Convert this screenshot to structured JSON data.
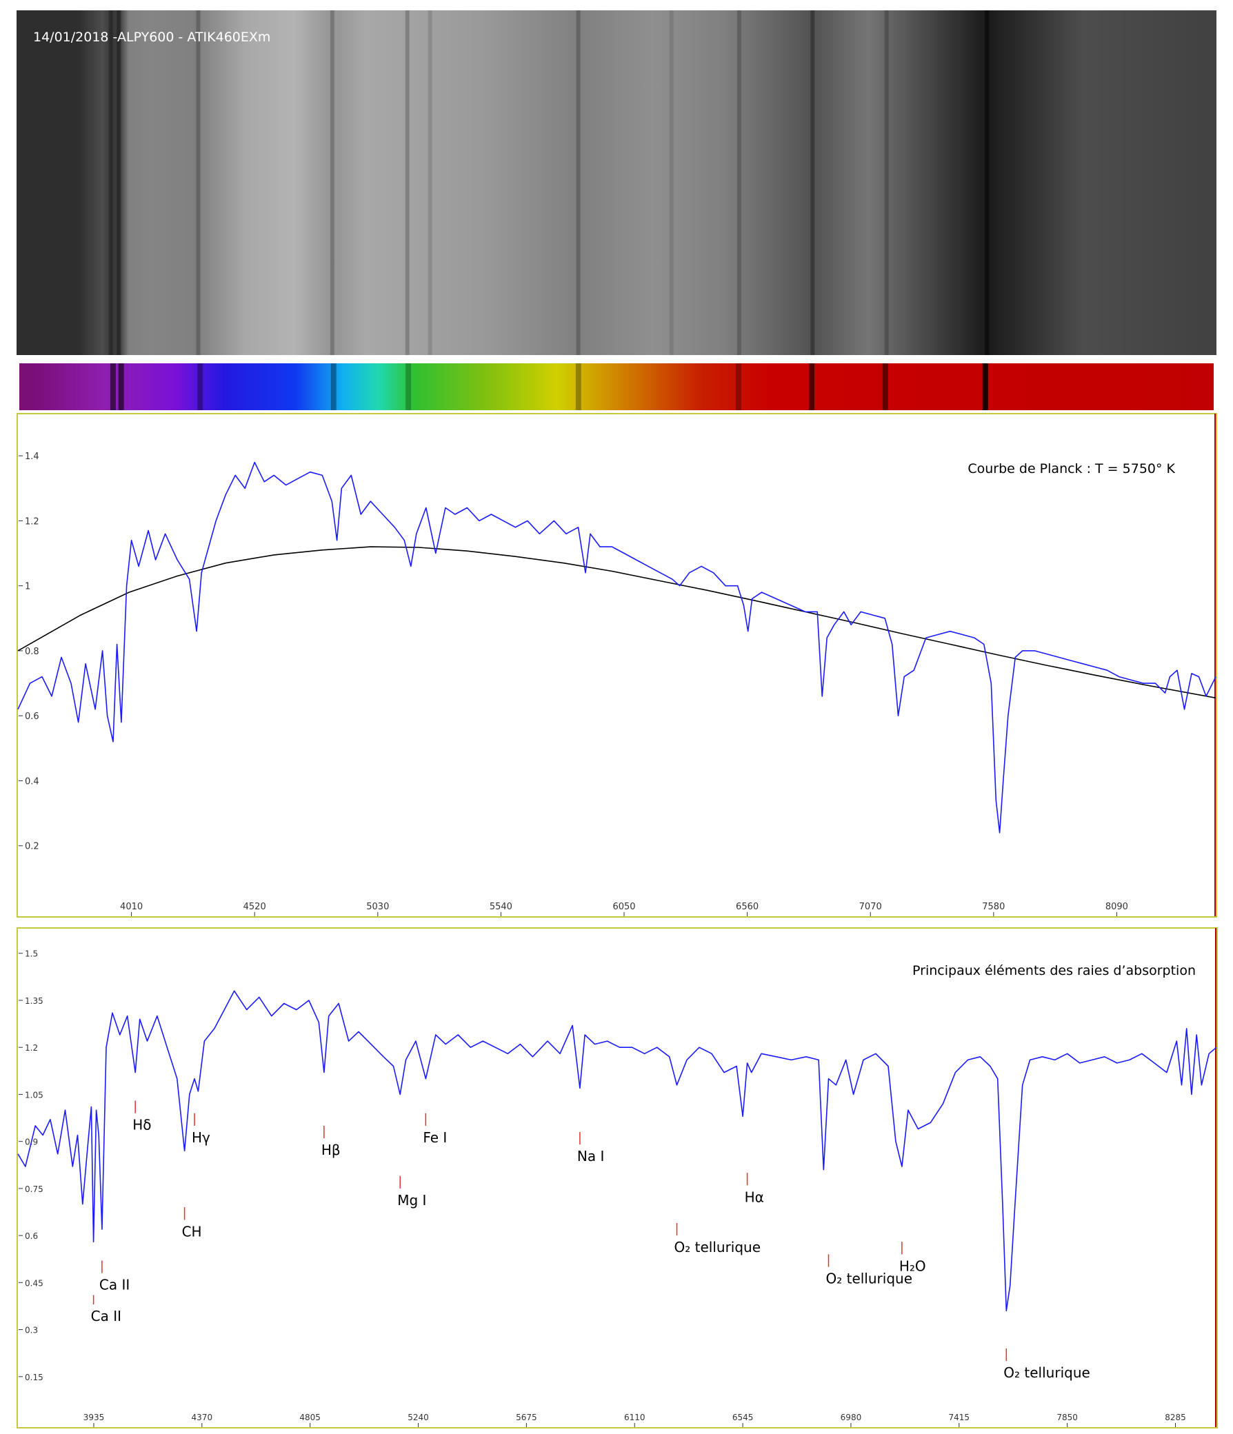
{
  "image_caption": "14/01/2018 -ALPY600 - ATIK460EXm",
  "colors": {
    "frame": "#c8c83c",
    "spectrum": "#1a1aff",
    "planck": "#000000",
    "marker": "#e03030",
    "end_marker": "#b00000"
  },
  "image_band_peaks": [
    {
      "x": 3800,
      "v": 0.18
    },
    {
      "x": 3900,
      "v": 0.3
    },
    {
      "x": 3940,
      "v": 0.22
    },
    {
      "x": 3970,
      "v": 0.24
    },
    {
      "x": 4010,
      "v": 0.5
    },
    {
      "x": 4100,
      "v": 0.52
    },
    {
      "x": 4300,
      "v": 0.5
    },
    {
      "x": 4500,
      "v": 0.66
    },
    {
      "x": 4700,
      "v": 0.7
    },
    {
      "x": 4860,
      "v": 0.58
    },
    {
      "x": 5000,
      "v": 0.66
    },
    {
      "x": 5500,
      "v": 0.6
    },
    {
      "x": 5890,
      "v": 0.5
    },
    {
      "x": 6200,
      "v": 0.56
    },
    {
      "x": 6500,
      "v": 0.5
    },
    {
      "x": 6870,
      "v": 0.32
    },
    {
      "x": 7100,
      "v": 0.46
    },
    {
      "x": 7600,
      "v": 0.1
    },
    {
      "x": 8000,
      "v": 0.3
    },
    {
      "x": 8500,
      "v": 0.26
    }
  ],
  "image_dark_lines": [
    {
      "x": 3934,
      "s": 0.25
    },
    {
      "x": 3968,
      "s": 0.3
    },
    {
      "x": 4300,
      "s": 0.22
    },
    {
      "x": 4861,
      "s": 0.2
    },
    {
      "x": 5175,
      "s": 0.2
    },
    {
      "x": 5270,
      "s": 0.12
    },
    {
      "x": 5890,
      "s": 0.22
    },
    {
      "x": 6280,
      "s": 0.1
    },
    {
      "x": 6563,
      "s": 0.2
    },
    {
      "x": 6870,
      "s": 0.3
    },
    {
      "x": 7180,
      "s": 0.2
    },
    {
      "x": 7600,
      "s": 0.45
    }
  ],
  "strip_color_stops": [
    {
      "x": 3600,
      "c": "#7a0f78"
    },
    {
      "x": 3900,
      "c": "#8f1fb0"
    },
    {
      "x": 4200,
      "c": "#7a10d8"
    },
    {
      "x": 4400,
      "c": "#2418e0"
    },
    {
      "x": 4700,
      "c": "#1038f0"
    },
    {
      "x": 4900,
      "c": "#10b0f0"
    },
    {
      "x": 5050,
      "c": "#20d8b0"
    },
    {
      "x": 5200,
      "c": "#30c030"
    },
    {
      "x": 5500,
      "c": "#80c010"
    },
    {
      "x": 5800,
      "c": "#d0d000"
    },
    {
      "x": 6100,
      "c": "#d07800"
    },
    {
      "x": 6400,
      "c": "#c82000"
    },
    {
      "x": 6700,
      "c": "#c80000"
    },
    {
      "x": 8600,
      "c": "#c00000"
    }
  ],
  "strip_dark_lines": [
    {
      "x": 3934,
      "s": 0.55
    },
    {
      "x": 3968,
      "s": 0.6
    },
    {
      "x": 4300,
      "s": 0.35
    },
    {
      "x": 4861,
      "s": 0.35
    },
    {
      "x": 5175,
      "s": 0.25
    },
    {
      "x": 5890,
      "s": 0.3
    },
    {
      "x": 6563,
      "s": 0.3
    },
    {
      "x": 6870,
      "s": 0.6
    },
    {
      "x": 7180,
      "s": 0.5
    },
    {
      "x": 7600,
      "s": 0.85
    }
  ],
  "chart_data": [
    {
      "type": "line",
      "title": "Courbe de Planck : T = 5750° K",
      "xlim": [
        3540,
        8500
      ],
      "ylim": [
        0.0,
        1.5
      ],
      "x_ticks": [
        4010,
        4520,
        5030,
        5540,
        6050,
        6560,
        7070,
        7580,
        8090
      ],
      "y_ticks": [
        0.2,
        0.4,
        0.6,
        0.8,
        1.0,
        1.2,
        1.4
      ],
      "y_tick_labels": [
        "0.2",
        "0.4",
        "0.6",
        "0.8",
        "1",
        "1.2",
        "1.4"
      ],
      "planck": {
        "x": [
          3540,
          3800,
          4000,
          4200,
          4400,
          4600,
          4800,
          5000,
          5200,
          5400,
          5600,
          5800,
          6000,
          6200,
          6400,
          6600,
          6800,
          7000,
          7200,
          7400,
          7600,
          7800,
          8000,
          8200,
          8500
        ],
        "values": [
          0.8,
          0.91,
          0.98,
          1.03,
          1.07,
          1.095,
          1.11,
          1.12,
          1.118,
          1.107,
          1.09,
          1.07,
          1.045,
          1.015,
          0.985,
          0.953,
          0.92,
          0.887,
          0.853,
          0.82,
          0.787,
          0.755,
          0.725,
          0.696,
          0.655
        ]
      },
      "series": [
        {
          "x": [
            3540,
            3590,
            3640,
            3680,
            3720,
            3760,
            3790,
            3820,
            3860,
            3890,
            3910,
            3934,
            3950,
            3968,
            3990,
            4010,
            4040,
            4080,
            4110,
            4150,
            4200,
            4250,
            4280,
            4300,
            4330,
            4360,
            4400,
            4440,
            4480,
            4520,
            4560,
            4600,
            4650,
            4700,
            4750,
            4800,
            4840,
            4861,
            4880,
            4920,
            4960,
            5000,
            5050,
            5100,
            5140,
            5167,
            5190,
            5230,
            5270,
            5310,
            5350,
            5400,
            5450,
            5500,
            5550,
            5600,
            5650,
            5700,
            5760,
            5810,
            5860,
            5890,
            5910,
            5950,
            6000,
            6050,
            6100,
            6150,
            6200,
            6250,
            6280,
            6320,
            6370,
            6420,
            6470,
            6520,
            6545,
            6563,
            6580,
            6620,
            6680,
            6740,
            6800,
            6850,
            6870,
            6890,
            6920,
            6960,
            6990,
            7030,
            7080,
            7130,
            7160,
            7185,
            7210,
            7250,
            7300,
            7350,
            7400,
            7450,
            7500,
            7540,
            7570,
            7590,
            7605,
            7620,
            7640,
            7670,
            7700,
            7750,
            7800,
            7850,
            7900,
            7950,
            8000,
            8050,
            8100,
            8150,
            8200,
            8250,
            8290,
            8310,
            8340,
            8370,
            8400,
            8430,
            8460,
            8500
          ],
          "values": [
            0.62,
            0.7,
            0.72,
            0.66,
            0.78,
            0.7,
            0.58,
            0.76,
            0.62,
            0.8,
            0.6,
            0.52,
            0.82,
            0.58,
            1.0,
            1.14,
            1.06,
            1.17,
            1.08,
            1.16,
            1.08,
            1.02,
            0.86,
            1.04,
            1.12,
            1.2,
            1.28,
            1.34,
            1.3,
            1.38,
            1.32,
            1.34,
            1.31,
            1.33,
            1.35,
            1.34,
            1.26,
            1.14,
            1.3,
            1.34,
            1.22,
            1.26,
            1.22,
            1.18,
            1.14,
            1.06,
            1.16,
            1.24,
            1.1,
            1.24,
            1.22,
            1.24,
            1.2,
            1.22,
            1.2,
            1.18,
            1.2,
            1.16,
            1.2,
            1.16,
            1.18,
            1.04,
            1.16,
            1.12,
            1.12,
            1.1,
            1.08,
            1.06,
            1.04,
            1.02,
            1.0,
            1.04,
            1.06,
            1.04,
            1.0,
            1.0,
            0.94,
            0.86,
            0.96,
            0.98,
            0.96,
            0.94,
            0.92,
            0.92,
            0.66,
            0.84,
            0.88,
            0.92,
            0.88,
            0.92,
            0.91,
            0.9,
            0.82,
            0.6,
            0.72,
            0.74,
            0.84,
            0.85,
            0.86,
            0.85,
            0.84,
            0.82,
            0.7,
            0.34,
            0.24,
            0.4,
            0.6,
            0.78,
            0.8,
            0.8,
            0.79,
            0.78,
            0.77,
            0.76,
            0.75,
            0.74,
            0.72,
            0.71,
            0.7,
            0.7,
            0.67,
            0.72,
            0.74,
            0.62,
            0.73,
            0.72,
            0.66,
            0.72
          ]
        }
      ]
    },
    {
      "type": "line",
      "title": "Principaux éléments des raies d’absorption",
      "xlim": [
        3630,
        8450
      ],
      "ylim": [
        0.0,
        1.55
      ],
      "x_ticks": [
        3935,
        4370,
        4805,
        5240,
        5675,
        6110,
        6545,
        6980,
        7415,
        7850,
        8285
      ],
      "y_ticks": [
        0.15,
        0.3,
        0.45,
        0.6,
        0.75,
        0.9,
        1.05,
        1.2,
        1.35,
        1.5
      ],
      "y_tick_labels": [
        "0.15",
        "0.3",
        "0.45",
        "0.6",
        "0.75",
        "0.9",
        "1.05",
        "1.2",
        "1.35",
        "1.5"
      ],
      "series": [
        {
          "x": [
            3630,
            3660,
            3700,
            3730,
            3760,
            3790,
            3820,
            3850,
            3870,
            3890,
            3910,
            3925,
            3934,
            3945,
            3955,
            3968,
            3985,
            4010,
            4040,
            4070,
            4102,
            4120,
            4150,
            4190,
            4230,
            4270,
            4300,
            4320,
            4340,
            4355,
            4380,
            4420,
            4460,
            4500,
            4550,
            4600,
            4650,
            4700,
            4750,
            4800,
            4840,
            4861,
            4880,
            4920,
            4960,
            5000,
            5050,
            5100,
            5140,
            5167,
            5190,
            5230,
            5270,
            5310,
            5350,
            5400,
            5450,
            5500,
            5550,
            5600,
            5650,
            5700,
            5760,
            5810,
            5860,
            5890,
            5910,
            5950,
            6000,
            6050,
            6100,
            6150,
            6200,
            6250,
            6280,
            6320,
            6370,
            6420,
            6470,
            6520,
            6545,
            6563,
            6580,
            6620,
            6680,
            6740,
            6800,
            6850,
            6870,
            6890,
            6920,
            6960,
            6990,
            7030,
            7080,
            7130,
            7160,
            7185,
            7210,
            7250,
            7300,
            7350,
            7400,
            7450,
            7500,
            7540,
            7570,
            7590,
            7605,
            7620,
            7640,
            7670,
            7700,
            7750,
            7800,
            7850,
            7900,
            7950,
            8000,
            8050,
            8100,
            8150,
            8200,
            8250,
            8290,
            8310,
            8330,
            8350,
            8370,
            8390,
            8420,
            8450
          ],
          "values": [
            0.86,
            0.82,
            0.95,
            0.92,
            0.97,
            0.86,
            1.0,
            0.82,
            0.92,
            0.7,
            0.88,
            1.01,
            0.58,
            1.0,
            0.92,
            0.62,
            1.2,
            1.31,
            1.24,
            1.3,
            1.12,
            1.29,
            1.22,
            1.3,
            1.2,
            1.1,
            0.87,
            1.05,
            1.1,
            1.06,
            1.22,
            1.26,
            1.32,
            1.38,
            1.32,
            1.36,
            1.3,
            1.34,
            1.32,
            1.35,
            1.28,
            1.12,
            1.3,
            1.34,
            1.22,
            1.25,
            1.21,
            1.17,
            1.14,
            1.05,
            1.16,
            1.22,
            1.1,
            1.24,
            1.21,
            1.24,
            1.2,
            1.22,
            1.2,
            1.18,
            1.21,
            1.17,
            1.22,
            1.18,
            1.27,
            1.07,
            1.24,
            1.21,
            1.22,
            1.2,
            1.2,
            1.18,
            1.2,
            1.17,
            1.08,
            1.16,
            1.2,
            1.18,
            1.12,
            1.14,
            0.98,
            1.15,
            1.12,
            1.18,
            1.17,
            1.16,
            1.17,
            1.16,
            0.81,
            1.1,
            1.08,
            1.16,
            1.05,
            1.16,
            1.18,
            1.14,
            0.9,
            0.82,
            1.0,
            0.94,
            0.96,
            1.02,
            1.12,
            1.16,
            1.17,
            1.14,
            1.1,
            0.7,
            0.36,
            0.44,
            0.7,
            1.08,
            1.16,
            1.17,
            1.16,
            1.18,
            1.15,
            1.16,
            1.17,
            1.15,
            1.16,
            1.18,
            1.15,
            1.12,
            1.22,
            1.08,
            1.26,
            1.05,
            1.24,
            1.08,
            1.18,
            1.2
          ]
        }
      ],
      "annotations": [
        {
          "x": 3934,
          "y": 0.41,
          "yl": 0.38,
          "label": "Ca II"
        },
        {
          "x": 3968,
          "y": 0.52,
          "yl": 0.48,
          "label": "Ca II"
        },
        {
          "x": 4102,
          "y": 1.03,
          "yl": 0.99,
          "label": "Hδ"
        },
        {
          "x": 4300,
          "y": 0.69,
          "yl": 0.65,
          "label": "CH"
        },
        {
          "x": 4340,
          "y": 0.99,
          "yl": 0.95,
          "label": "Hγ"
        },
        {
          "x": 4861,
          "y": 0.95,
          "yl": 0.91,
          "label": "Hβ"
        },
        {
          "x": 5167,
          "y": 0.79,
          "yl": 0.75,
          "label": "Mg I"
        },
        {
          "x": 5270,
          "y": 0.99,
          "yl": 0.95,
          "label": "Fe I"
        },
        {
          "x": 5890,
          "y": 0.93,
          "yl": 0.89,
          "label": "Na I"
        },
        {
          "x": 6280,
          "y": 0.64,
          "yl": 0.6,
          "label": "O₂ tellurique"
        },
        {
          "x": 6563,
          "y": 0.8,
          "yl": 0.76,
          "label": "Hα"
        },
        {
          "x": 6890,
          "y": 0.54,
          "yl": 0.5,
          "label": "O₂ tellurique"
        },
        {
          "x": 7185,
          "y": 0.58,
          "yl": 0.54,
          "label": "H₂O"
        },
        {
          "x": 7605,
          "y": 0.24,
          "yl": 0.2,
          "label": "O₂ tellurique"
        }
      ]
    }
  ]
}
